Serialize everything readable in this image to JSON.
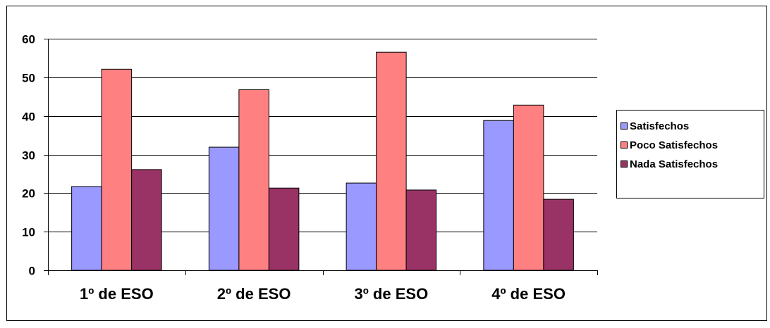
{
  "chart_data": {
    "type": "bar",
    "categories": [
      "1º de ESO",
      "2º de ESO",
      "3º de ESO",
      "4º de ESO"
    ],
    "series": [
      {
        "name": "Satisfechos",
        "color": "#9999ff",
        "values": [
          21.7,
          31.9,
          22.6,
          38.8
        ]
      },
      {
        "name": "Poco Satisfechos",
        "color": "#ff8080",
        "values": [
          52.1,
          46.8,
          56.5,
          42.8
        ]
      },
      {
        "name": "Nada Satisfechos",
        "color": "#993366",
        "values": [
          26.1,
          21.3,
          20.8,
          18.4
        ]
      }
    ],
    "yticks": [
      "0",
      "10",
      "20",
      "30",
      "40",
      "50",
      "60"
    ],
    "ylim": [
      0,
      60
    ],
    "grid": true,
    "legend_position": "right",
    "title": "",
    "xlabel": "",
    "ylabel": ""
  }
}
